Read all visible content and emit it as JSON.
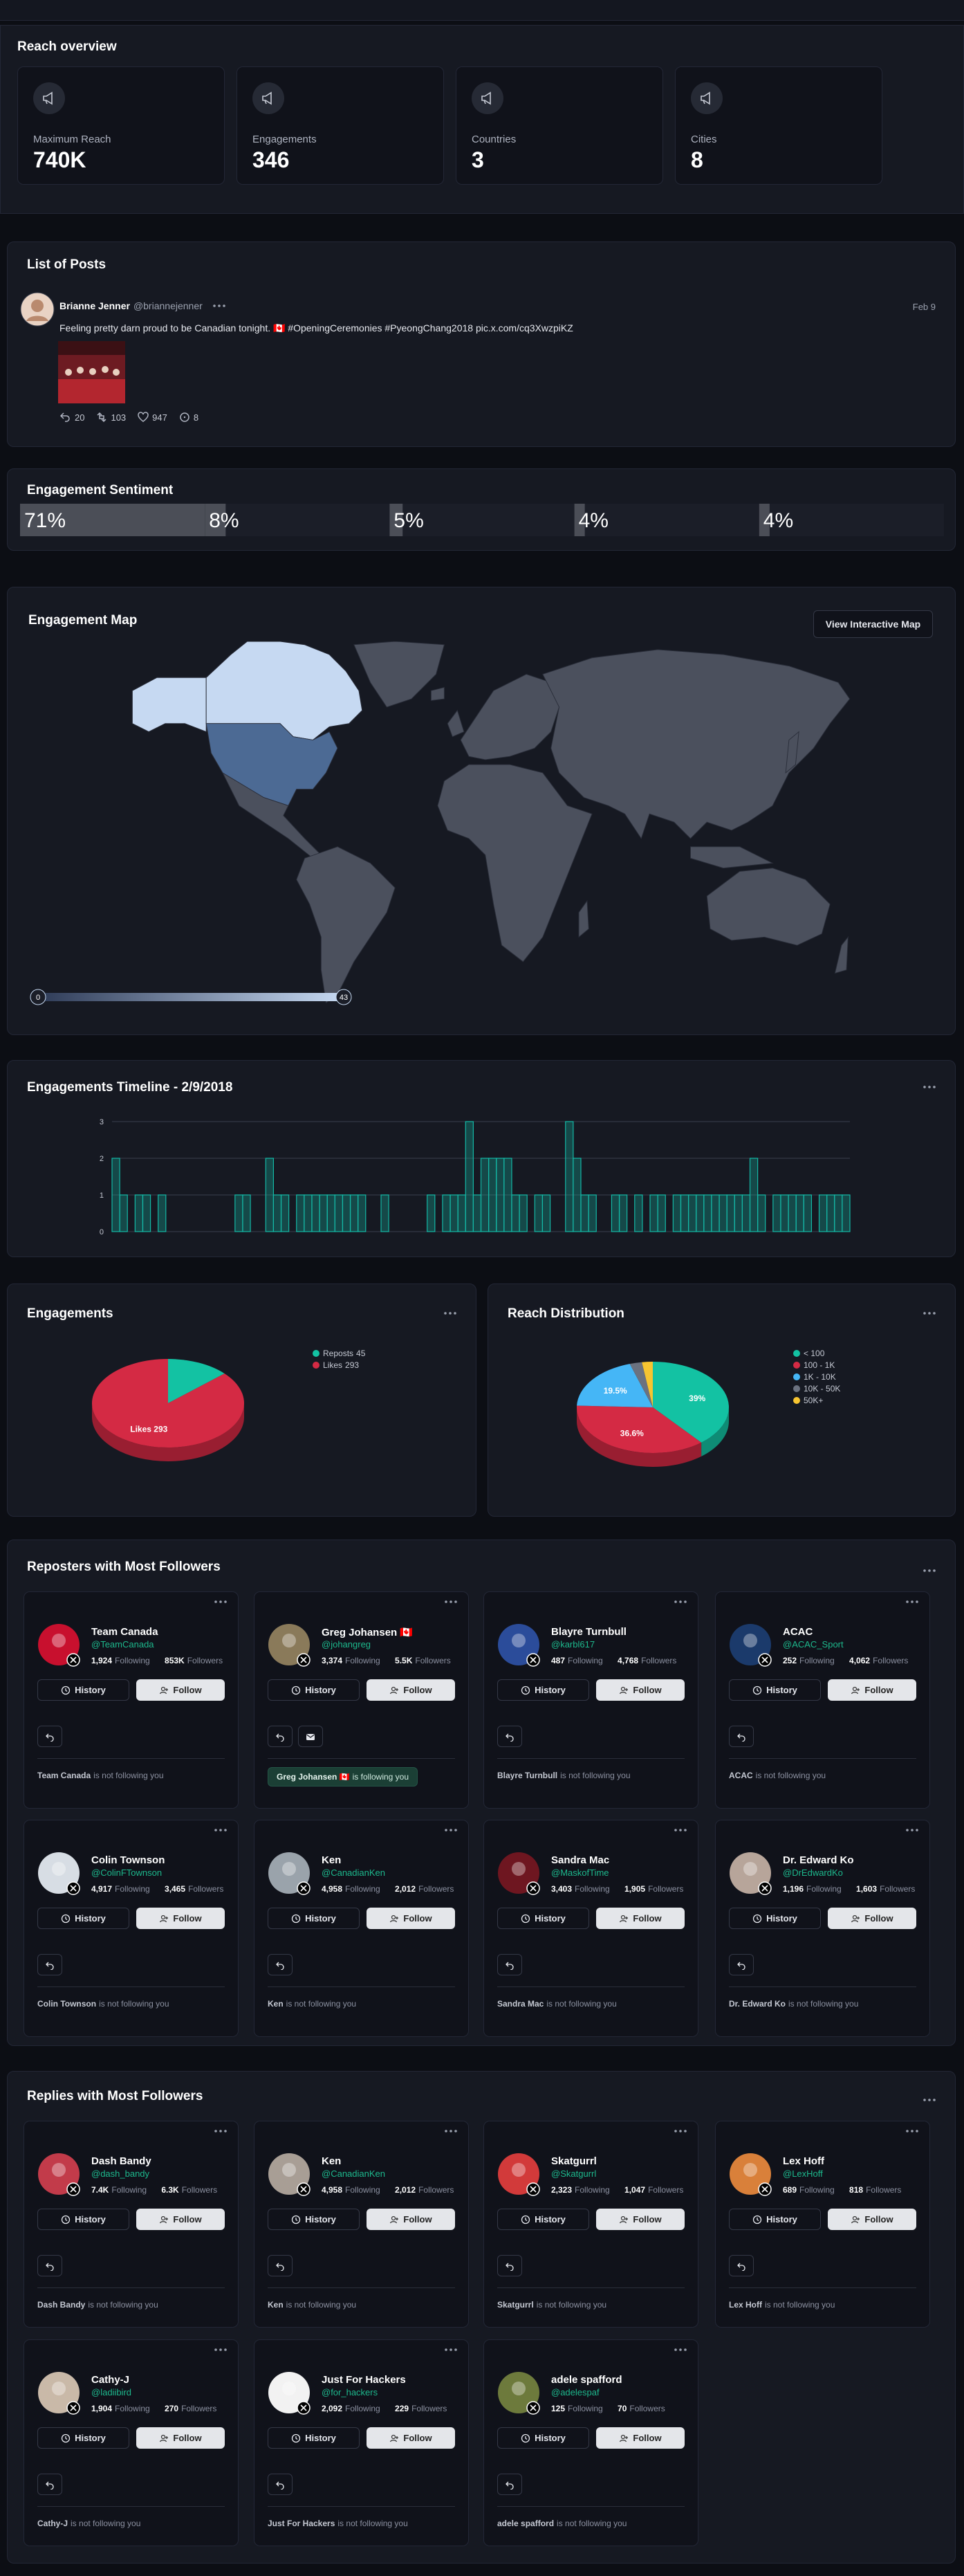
{
  "reach_overview": {
    "title": "Reach overview",
    "cards": [
      {
        "label": "Maximum Reach",
        "value": "740K"
      },
      {
        "label": "Engagements",
        "value": 346
      },
      {
        "label": "Countries",
        "value": 3
      },
      {
        "label": "Cities",
        "value": 8
      }
    ]
  },
  "posts": {
    "title": "List of Posts",
    "items": [
      {
        "name": "Brianne Jenner",
        "handle": "@briannejenner",
        "date": "Feb 9",
        "text": "Feeling pretty darn proud to be Canadian tonight. 🇨🇦 #OpeningCeremonies #PyeongChang2018 pic.x.com/cq3XwzpiKZ",
        "replies": 20,
        "reposts": 103,
        "likes": 947,
        "views": 8
      }
    ]
  },
  "chart_data": [
    {
      "type": "sentiment",
      "title": "Engagement Sentiment",
      "values": [
        71,
        8,
        5,
        4,
        4
      ],
      "value_labels": [
        "71%",
        "8%",
        "5%",
        "4%",
        "4%"
      ],
      "color": "#4b4e57"
    },
    {
      "type": "map",
      "title": "Engagement Map",
      "button": "View Interactive Map",
      "legend_range": [
        0,
        43
      ],
      "colors": [
        "#2e3b57",
        "#c6d9f2"
      ]
    },
    {
      "type": "bar",
      "title": "Engagements Timeline - 2/9/2018",
      "values": [
        2,
        1,
        0,
        1,
        1,
        0,
        1,
        0,
        0,
        0,
        0,
        0,
        0,
        0,
        0,
        0,
        1,
        1,
        0,
        0,
        2,
        1,
        1,
        0,
        1,
        1,
        1,
        1,
        1,
        1,
        1,
        1,
        1,
        0,
        0,
        1,
        0,
        0,
        0,
        0,
        0,
        1,
        0,
        1,
        1,
        1,
        3,
        1,
        2,
        2,
        2,
        2,
        1,
        1,
        0,
        1,
        1,
        0,
        0,
        3,
        2,
        1,
        1,
        0,
        0,
        1,
        1,
        0,
        1,
        0,
        1,
        1,
        0,
        1,
        1,
        1,
        1,
        1,
        1,
        1,
        1,
        1,
        1,
        2,
        1,
        0,
        1,
        1,
        1,
        1,
        1,
        0,
        1,
        1,
        1,
        1
      ],
      "ylim": [
        0,
        3
      ],
      "yticks": [
        0,
        1,
        2,
        3
      ],
      "grid": true,
      "color": "#14b8a6"
    },
    {
      "type": "pie",
      "title": "Engagements",
      "categories": [
        "Reposts",
        "Likes"
      ],
      "values": [
        45,
        293
      ],
      "value_labels": [
        null,
        "Likes 293"
      ],
      "colors": [
        "#13c2a3",
        "#d42a44"
      ]
    },
    {
      "type": "pie",
      "title": "Reach Distribution",
      "categories": [
        "< 100",
        "100 - 1K",
        "1K - 10K",
        "10K - 50K",
        "50K+"
      ],
      "values": [
        39,
        36.6,
        19.5,
        2.6,
        2.3
      ],
      "value_labels": [
        "39%",
        "36.6%",
        "19.5%",
        null,
        null
      ],
      "colors": [
        "#13c2a3",
        "#d42a44",
        "#45b6f6",
        "#6b7280",
        "#f7c531"
      ]
    }
  ],
  "labels": {
    "following": "Following",
    "followers": "Followers",
    "history": "History",
    "follow": "Follow"
  },
  "reposters": {
    "title": "Reposters with Most Followers",
    "people": [
      {
        "name": "Team Canada",
        "handle": "@TeamCanada",
        "following": "1,924",
        "followers": "853K",
        "status": "is not following you"
      },
      {
        "name": "Greg Johansen 🇨🇦",
        "handle": "@johangreg",
        "following": "3,374",
        "followers": "5.5K",
        "status": "is following you",
        "follows_you": true
      },
      {
        "name": "Blayre Turnbull",
        "handle": "@karbl617",
        "following": "487",
        "followers": "4,768",
        "status": "is not following you"
      },
      {
        "name": "ACAC",
        "handle": "@ACAC_Sport",
        "following": "252",
        "followers": "4,062",
        "status": "is not following you"
      },
      {
        "name": "Colin Townson",
        "handle": "@ColinFTownson",
        "following": "4,917",
        "followers": "3,465",
        "status": "is not following you"
      },
      {
        "name": "Ken",
        "handle": "@CanadianKen",
        "following": "4,958",
        "followers": "2,012",
        "status": "is not following you"
      },
      {
        "name": "Sandra Mac",
        "handle": "@MaskofTime",
        "following": "3,403",
        "followers": "1,905",
        "status": "is not following you"
      },
      {
        "name": "Dr. Edward Ko",
        "handle": "@DrEdwardKo",
        "following": "1,196",
        "followers": "1,603",
        "status": "is not following you"
      }
    ]
  },
  "replies": {
    "title": "Replies with Most Followers",
    "people": [
      {
        "name": "Dash Bandy",
        "handle": "@dash_bandy",
        "following": "7.4K",
        "followers": "6.3K",
        "status": "is not following you"
      },
      {
        "name": "Ken",
        "handle": "@CanadianKen",
        "following": "4,958",
        "followers": "2,012",
        "status": "is not following you"
      },
      {
        "name": "Skatgurrl",
        "handle": "@Skatgurrl",
        "following": "2,323",
        "followers": "1,047",
        "status": "is not following you"
      },
      {
        "name": "Lex Hoff",
        "handle": "@LexHoff",
        "following": "689",
        "followers": "818",
        "status": "is not following you"
      },
      {
        "name": "Cathy-J",
        "handle": "@ladiibird",
        "following": "1,904",
        "followers": "270",
        "status": "is not following you"
      },
      {
        "name": "Just For Hackers",
        "handle": "@for_hackers",
        "following": "2,092",
        "followers": "229",
        "status": "is not following you"
      },
      {
        "name": "adele spafford",
        "handle": "@adelespaf",
        "following": "125",
        "followers": "70",
        "status": "is not following you"
      }
    ]
  }
}
